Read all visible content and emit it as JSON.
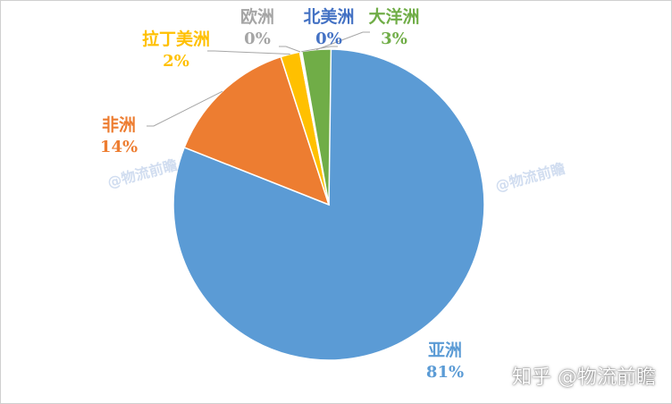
{
  "chart_data": {
    "type": "pie",
    "slices": [
      {
        "label": "亚洲",
        "value": 81,
        "pct_text": "81%",
        "color": "#5b9bd5"
      },
      {
        "label": "非洲",
        "value": 14,
        "pct_text": "14%",
        "color": "#ed7d31"
      },
      {
        "label": "拉丁美洲",
        "value": 2,
        "pct_text": "2%",
        "color": "#ffc000"
      },
      {
        "label": "欧洲",
        "value": 0,
        "pct_text": "0%",
        "color": "#a5a5a5"
      },
      {
        "label": "北美洲",
        "value": 0,
        "pct_text": "0%",
        "color": "#4472c4"
      },
      {
        "label": "大洋洲",
        "value": 3,
        "pct_text": "3%",
        "color": "#70ad47"
      }
    ],
    "title": "",
    "legend": "none"
  },
  "watermarks": {
    "left": "@物流前瞻",
    "right": "@物流前瞻",
    "bottom": "知乎 @物流前瞻"
  }
}
